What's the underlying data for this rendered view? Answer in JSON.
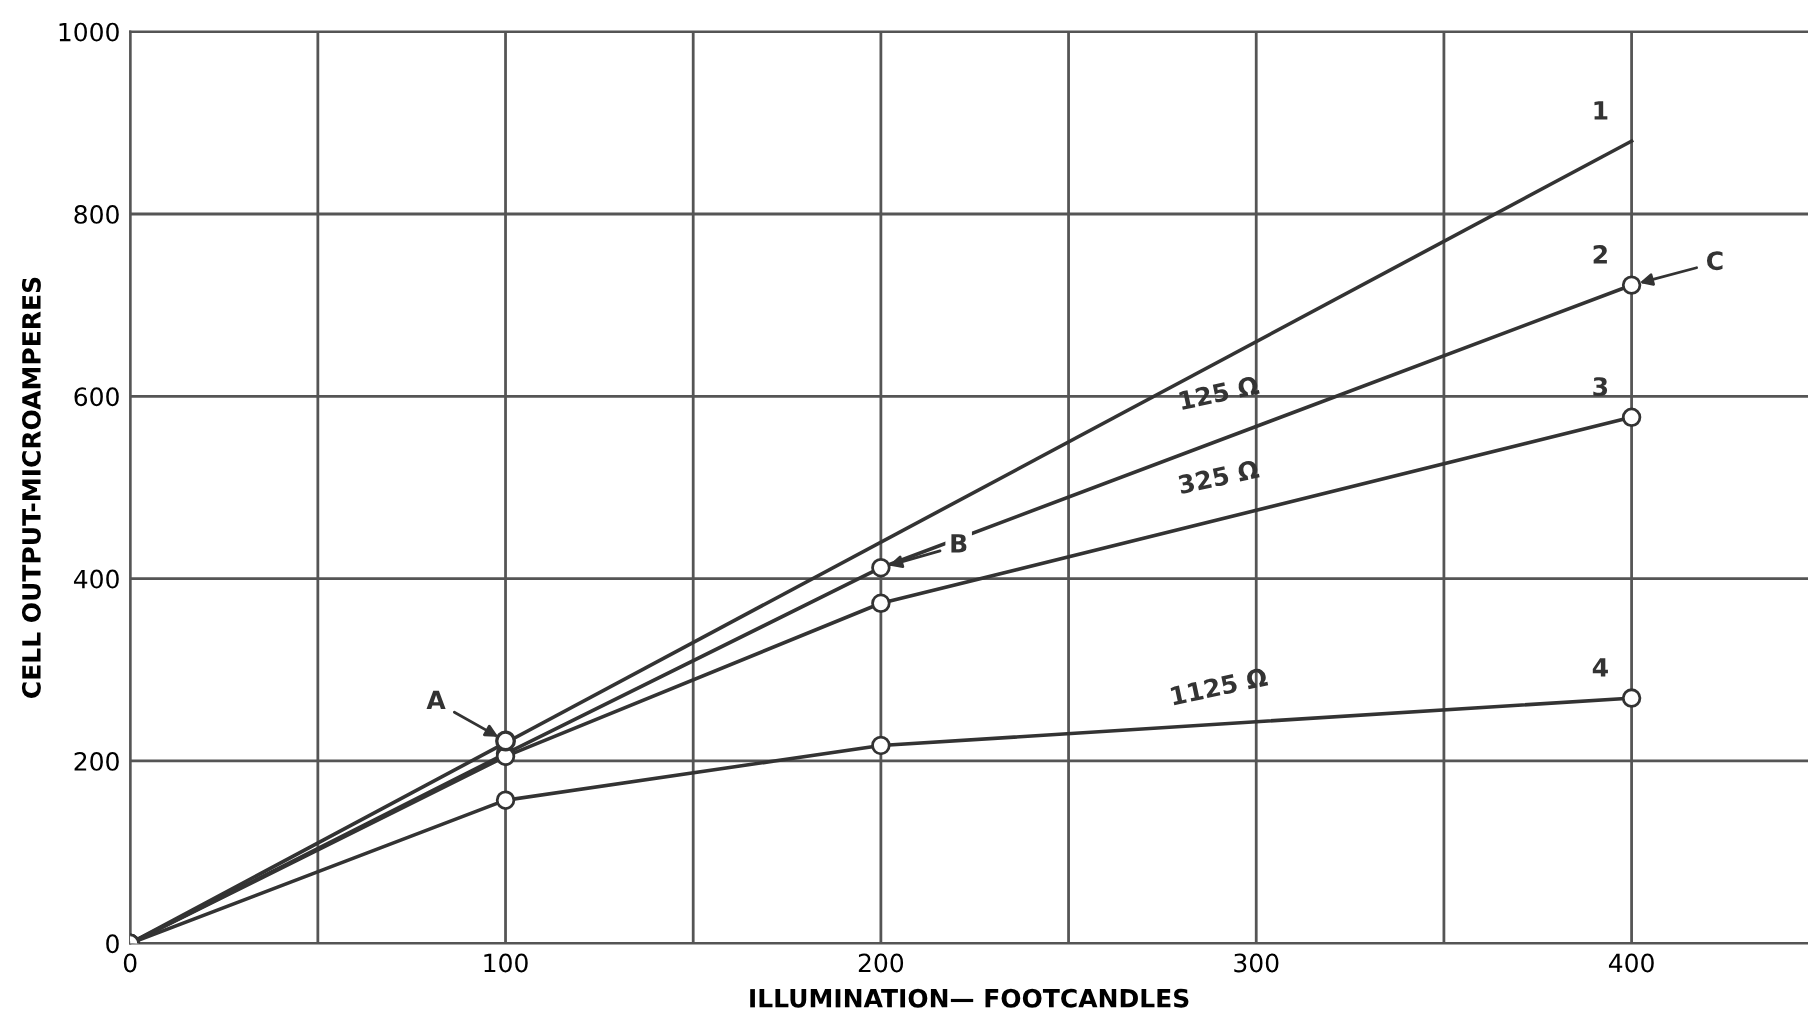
{
  "chart_data": {
    "type": "line",
    "xlabel": "ILLUMINATION— FOOTCANDLES",
    "ylabel": "CELL OUTPUT-MICROAMPERES",
    "xlim": [
      0,
      447
    ],
    "ylim": [
      0,
      1000
    ],
    "xticks": [
      0,
      {
        "value": 50,
        "label": null
      },
      100,
      {
        "value": 150,
        "label": null
      },
      200,
      {
        "value": 250,
        "label": null
      },
      300,
      {
        "value": 350,
        "label": null
      },
      400
    ],
    "yticks": [
      0,
      200,
      400,
      600,
      800,
      1000
    ],
    "grid": true,
    "line_style": "solid",
    "series": [
      {
        "name": "1",
        "color": "#333333",
        "x": [
          0,
          400
        ],
        "values": [
          0,
          880
        ]
      },
      {
        "type": "scatter",
        "color": "#333333",
        "x": [
          100
        ],
        "values": [
          222
        ],
        "marker": "circle"
      },
      {
        "name": "2",
        "color": "#333333",
        "x": [
          0,
          100,
          200,
          400
        ],
        "values": [
          0,
          208,
          412,
          722
        ],
        "marker": "circle"
      },
      {
        "name": "3",
        "color": "#333333",
        "x": [
          0,
          100,
          200,
          400
        ],
        "values": [
          0,
          205,
          373,
          577
        ],
        "marker": "circle"
      },
      {
        "name": "4",
        "color": "#333333",
        "x": [
          0,
          100,
          200,
          400
        ],
        "values": [
          0,
          157,
          217,
          269
        ],
        "marker": "circle"
      }
    ],
    "annotations": [
      "125 Ω",
      "325 Ω",
      "1125 Ω",
      {
        "text": "A",
        "x": 100,
        "y": 222
      },
      {
        "text": "B",
        "x": 200,
        "y": 412
      },
      {
        "text": "C",
        "x": 400,
        "y": 722
      }
    ]
  }
}
